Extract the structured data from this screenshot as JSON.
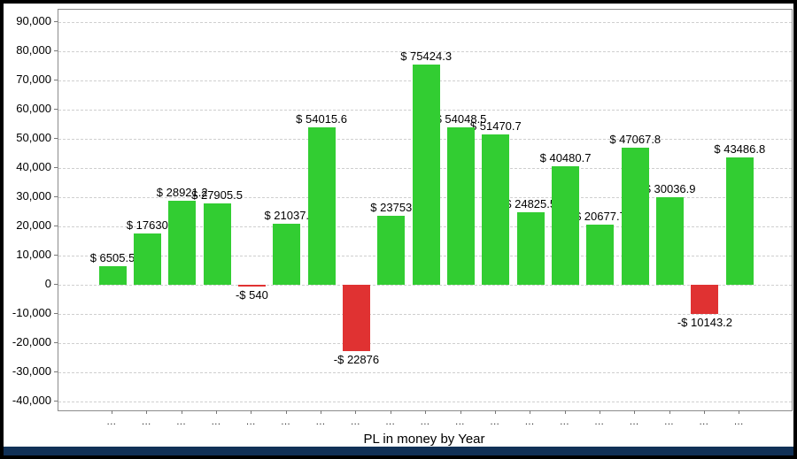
{
  "window": {
    "frame_color": "#000000",
    "bottom_bar_color": "#113157"
  },
  "chart_data": {
    "type": "bar",
    "title": "PL in money by Year",
    "categories": [
      "...",
      "...",
      "...",
      "...",
      "...",
      "...",
      "...",
      "...",
      "...",
      "...",
      "...",
      "...",
      "...",
      "...",
      "...",
      "...",
      "...",
      "...",
      "..."
    ],
    "values": [
      6505.5,
      17630,
      28921.2,
      27905.5,
      -540,
      21037,
      54015.6,
      -22876,
      23753,
      75424.3,
      54048.5,
      51470.7,
      24825.5,
      40480.7,
      20677.7,
      47067.8,
      30036.9,
      -10143.2,
      43486.8
    ],
    "bar_labels": [
      "$ 6505.5",
      "$ 17630",
      "$ 28921.2",
      "$ 27905.5",
      "-$ 540",
      "$ 21037.",
      "$ 54015.6",
      "-$ 22876",
      "$ 23753",
      "$ 75424.3",
      "$ 54048.5",
      "$ 51470.7",
      "$ 24825.5",
      "$ 40480.7",
      "$ 20677.7",
      "$ 47067.8",
      "$ 30036.9",
      "-$ 10143.2",
      "$ 43486.8"
    ],
    "xlabel": "PL in money by Year",
    "ylabel": "",
    "ylim": [
      -40000,
      90000
    ],
    "ytick_step": 10000,
    "ytick_labels": [
      "90,000",
      "80,000",
      "70,000",
      "60,000",
      "50,000",
      "40,000",
      "30,000",
      "20,000",
      "10,000",
      "0",
      "-10,000",
      "-20,000",
      "-30,000",
      "-40,000"
    ],
    "grid": "horizontal-dashed",
    "legend": "none",
    "colors": {
      "positive": "#32cd32",
      "negative": "#e03232",
      "grid": "#cfcfcf",
      "axis_border": "#8c8c8c",
      "tick": "#777777",
      "text": "#000000"
    }
  }
}
